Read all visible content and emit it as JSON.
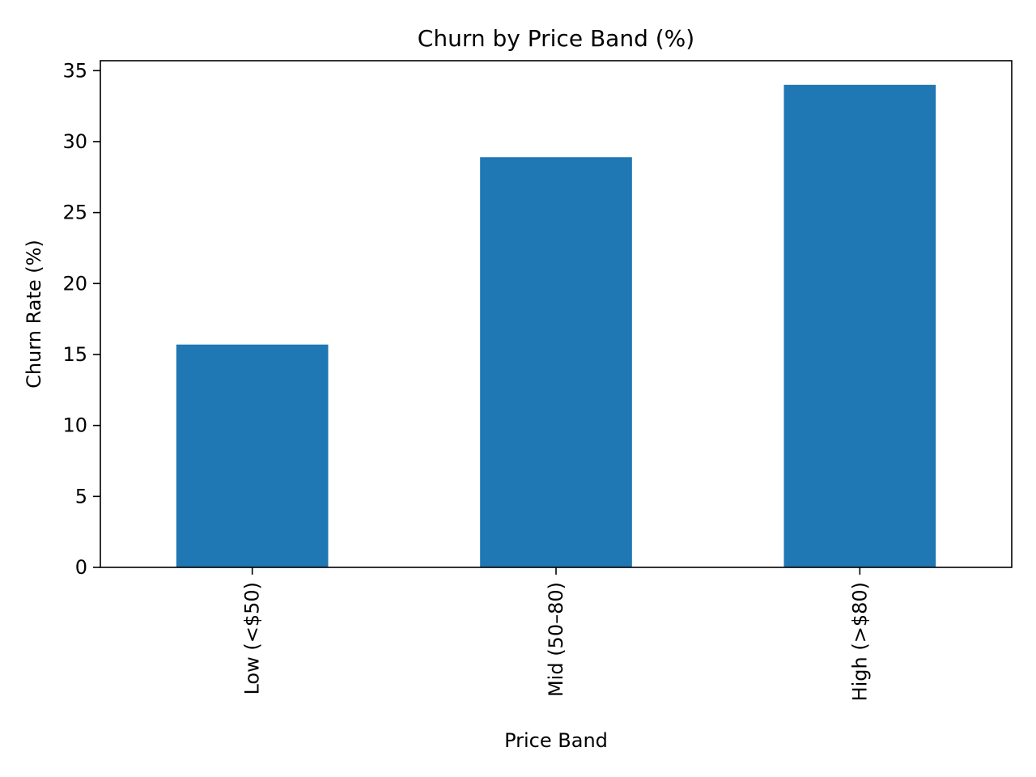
{
  "chart_data": {
    "type": "bar",
    "title": "Churn by Price Band (%)",
    "xlabel": "Price Band",
    "ylabel": "Churn Rate (%)",
    "categories": [
      "Low (<$50)",
      "Mid (50–80)",
      "High (>$80)"
    ],
    "values": [
      15.7,
      28.9,
      34.0
    ],
    "ylim": [
      0,
      35.7
    ],
    "yticks": [
      0,
      5,
      10,
      15,
      20,
      25,
      30,
      35
    ],
    "grid": false,
    "legend": "none",
    "bar_color": "#1f77b4",
    "xtick_rotation": "vertical"
  }
}
